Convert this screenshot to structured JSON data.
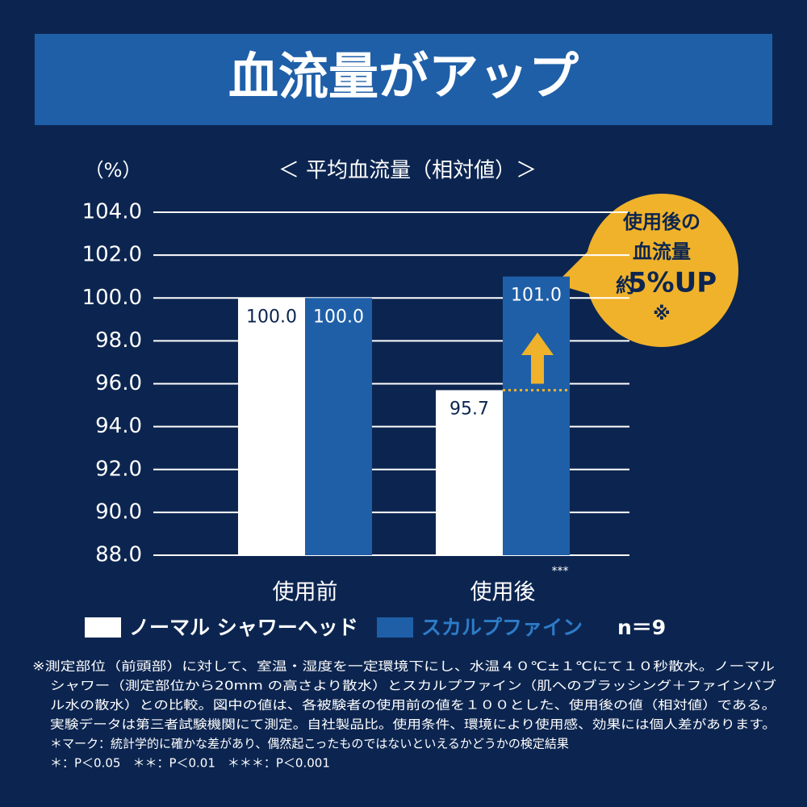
{
  "chart_data": {
    "type": "bar",
    "title": "血流量がアップ",
    "subtitle": "＜ 平均血流量（相対値）＞",
    "y_label": "（%）",
    "categories": [
      "使用前",
      "使用後"
    ],
    "series": [
      {
        "name": "ノーマル シャワーヘッド",
        "color": "#ffffff",
        "values": [
          100.0,
          95.7
        ],
        "value_labels": [
          "100.0",
          "95.7"
        ]
      },
      {
        "name": "スカルプファイン",
        "color": "#1f5fa8",
        "values": [
          100.0,
          101.0
        ],
        "value_labels": [
          "100.0",
          "101.0"
        ]
      }
    ],
    "ylim": [
      88,
      104
    ],
    "yticks": [
      {
        "value": 88,
        "label": "88.0"
      },
      {
        "value": 90,
        "label": "90.0"
      },
      {
        "value": 92,
        "label": "92.0"
      },
      {
        "value": 94,
        "label": "94.0"
      },
      {
        "value": 96,
        "label": "96.0"
      },
      {
        "value": 98,
        "label": "98.0"
      },
      {
        "value": 100,
        "label": "100.0"
      },
      {
        "value": 102,
        "label": "102.0"
      },
      {
        "value": 104,
        "label": "104.0"
      }
    ],
    "grid": true,
    "significance": "***",
    "callout": [
      "使用後の",
      "血流量",
      "約",
      "5%UP",
      "※"
    ],
    "sample_size": "n＝9",
    "footnotes": [
      "※測定部位（前頭部）に対して、室温・湿度を一定環境下にし、水温４０℃±１℃にて１０秒散水。ノーマル",
      "シャワー（測定部位から20mm の高さより散水）とスカルプファイン（肌へのブラッシング＋ファインバブ",
      "ル水の散水）との比較。図中の値は、各被験者の使用前の値を１００とした、使用後の値（相対値）である。",
      "実験データは第三者試験機関にて測定。自社製品比。使用条件、環境により使用感、効果には個人差があります。",
      "＊マーク：統計学的に確かな差があり、偶然起こったものではないといえるかどうかの検定結果",
      "＊：P＜0.05　＊＊：P＜0.01　＊＊＊：P＜0.001"
    ]
  }
}
